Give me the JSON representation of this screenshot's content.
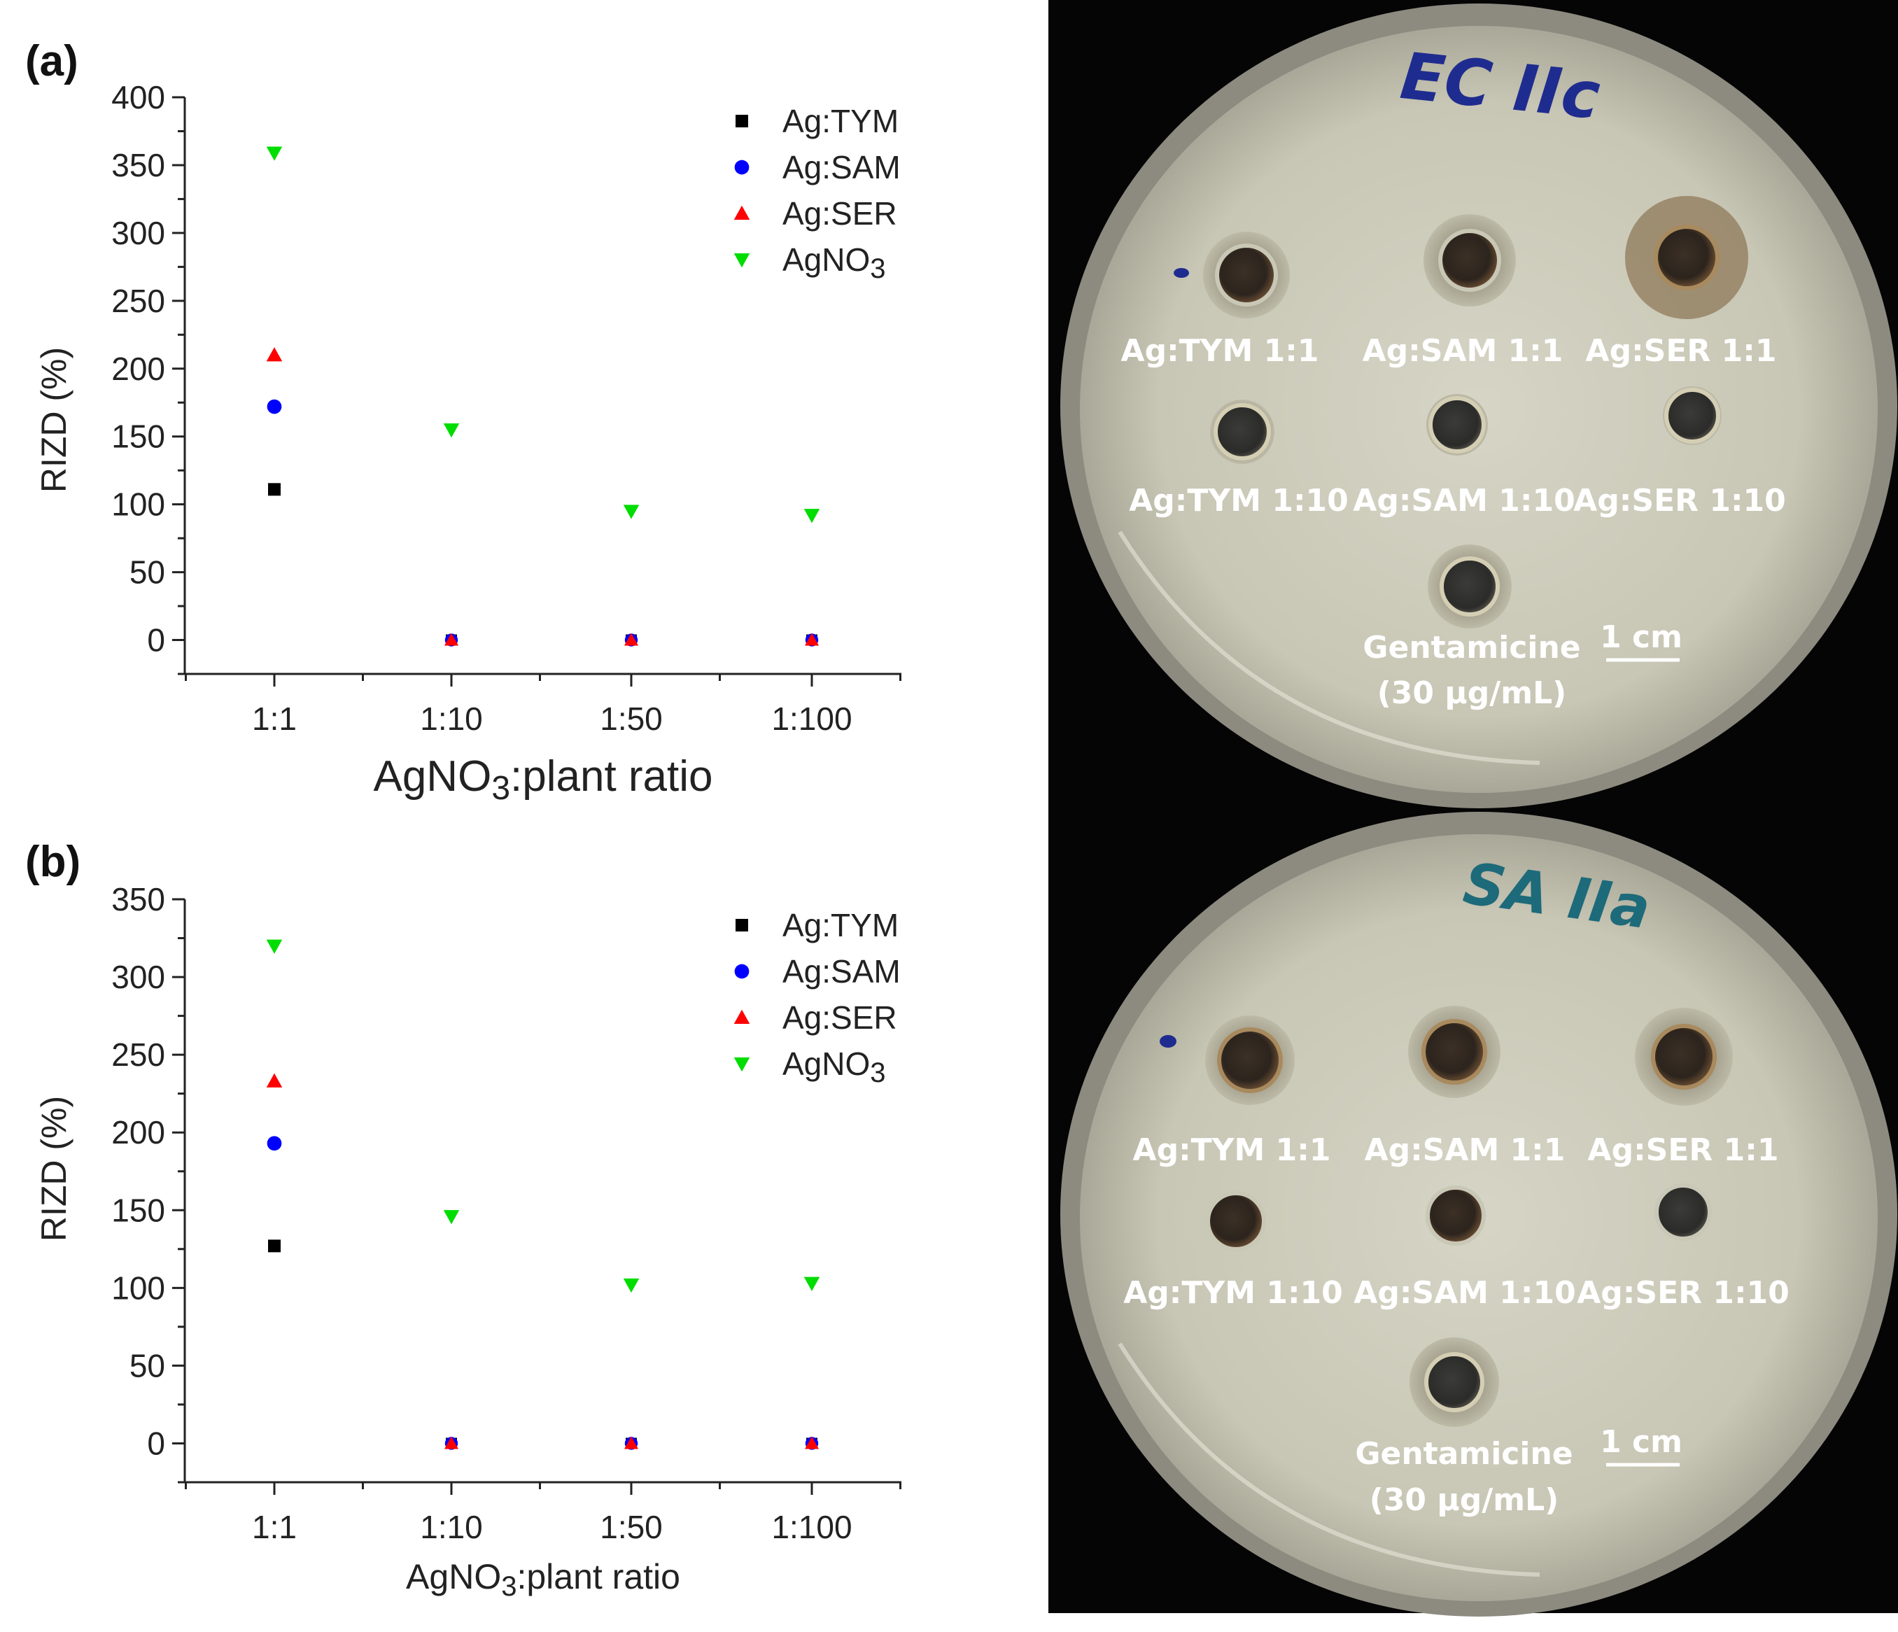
{
  "chart_data": [
    {
      "panel": "(a)",
      "type": "scatter",
      "xlabel_main": "AgNO",
      "xlabel_sub": "3",
      "xlabel_rest": ":plant ratio",
      "ylabel": "RIZD (%)",
      "categories": [
        "1:1",
        "1:10",
        "1:50",
        "1:100"
      ],
      "ylim": [
        -25,
        400
      ],
      "yticks": [
        "0",
        "50",
        "100",
        "150",
        "200",
        "250",
        "300",
        "350",
        "400"
      ],
      "series": [
        {
          "name": "Ag:TYM",
          "legend_main": "Ag:TYM",
          "legend_sub": "",
          "marker": "square",
          "color": "#000000",
          "values": [
            111,
            0,
            0,
            0
          ]
        },
        {
          "name": "Ag:SAM",
          "legend_main": "Ag:SAM",
          "legend_sub": "",
          "marker": "circle",
          "color": "#0000ff",
          "values": [
            172,
            0,
            0,
            0
          ]
        },
        {
          "name": "Ag:SER",
          "legend_main": "Ag:SER",
          "legend_sub": "",
          "marker": "triangle-up",
          "color": "#ff0000",
          "values": [
            210,
            0,
            0,
            0
          ]
        },
        {
          "name": "AgNO3",
          "legend_main": "AgNO",
          "legend_sub": "3",
          "marker": "triangle-down",
          "color": "#00dd00",
          "values": [
            359,
            155,
            95,
            92
          ]
        }
      ]
    },
    {
      "panel": "(b)",
      "type": "scatter",
      "xlabel_main": "AgNO",
      "xlabel_sub": "3",
      "xlabel_rest": ":plant ratio",
      "ylabel": "RIZD (%)",
      "categories": [
        "1:1",
        "1:10",
        "1:50",
        "1:100"
      ],
      "ylim": [
        -25,
        350
      ],
      "yticks": [
        "0",
        "50",
        "100",
        "150",
        "200",
        "250",
        "300",
        "350"
      ],
      "series": [
        {
          "name": "Ag:TYM",
          "legend_main": "Ag:TYM",
          "legend_sub": "",
          "marker": "square",
          "color": "#000000",
          "values": [
            127,
            0,
            0,
            0
          ]
        },
        {
          "name": "Ag:SAM",
          "legend_main": "Ag:SAM",
          "legend_sub": "",
          "marker": "circle",
          "color": "#0000ff",
          "values": [
            193,
            0,
            0,
            0
          ]
        },
        {
          "name": "Ag:SER",
          "legend_main": "Ag:SER",
          "legend_sub": "",
          "marker": "triangle-up",
          "color": "#ff0000",
          "values": [
            233,
            0,
            0,
            0
          ]
        },
        {
          "name": "AgNO3",
          "legend_main": "AgNO",
          "legend_sub": "3",
          "marker": "triangle-down",
          "color": "#00dd00",
          "values": [
            320,
            146,
            102,
            103
          ]
        }
      ]
    }
  ],
  "photos": [
    {
      "handwriting": "EC IIc",
      "labels": {
        "r1c1": "Ag:TYM 1:1",
        "r1c2": "Ag:SAM 1:1",
        "r1c3": "Ag:SER 1:1",
        "r2c1": "Ag:TYM 1:10",
        "r2c2": "Ag:SAM 1:10",
        "r2c3": "Ag:SER 1:10",
        "control_line1": "Gentamicine",
        "control_line2": "(30 µg/mL)",
        "scale": "1 cm"
      }
    },
    {
      "handwriting": "SA IIa",
      "labels": {
        "r1c1": "Ag:TYM 1:1",
        "r1c2": "Ag:SAM 1:1",
        "r1c3": "Ag:SER 1:1",
        "r2c1": "Ag:TYM 1:10",
        "r2c2": "Ag:SAM 1:10",
        "r2c3": "Ag:SER 1:10",
        "control_line1": "Gentamicine",
        "control_line2": "(30 µg/mL)",
        "scale": "1 cm"
      }
    }
  ]
}
